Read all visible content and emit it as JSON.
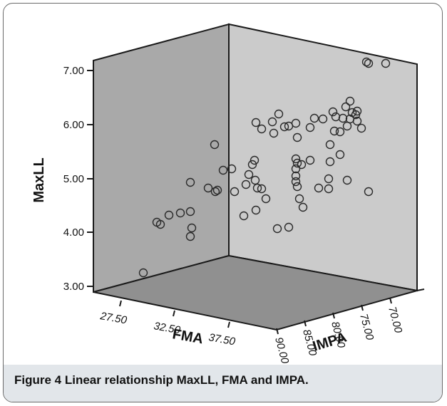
{
  "figure": {
    "caption_label": "Figure 4",
    "caption_text": "Linear relationship MaxLL, FMA and IMPA."
  },
  "chart_data": {
    "type": "scatter",
    "projection": "3d",
    "title": "",
    "zlabel": "MaxLL",
    "xlabel": "FMA",
    "ylabel": "IMPA",
    "z_ticks": [
      "3.00",
      "4.00",
      "5.00",
      "6.00",
      "7.00"
    ],
    "x_ticks": [
      "27.50",
      "32.50",
      "37.50"
    ],
    "y_ticks": [
      "90.00",
      "85.00",
      "80.00",
      "75.00",
      "70.00"
    ],
    "points_projected": [
      [
        200,
        382
      ],
      [
        219,
        311
      ],
      [
        236,
        301
      ],
      [
        252,
        298
      ],
      [
        266,
        296
      ],
      [
        224,
        314
      ],
      [
        266,
        255
      ],
      [
        268,
        319
      ],
      [
        266,
        331
      ],
      [
        300,
        202
      ],
      [
        291,
        263
      ],
      [
        301,
        268
      ],
      [
        304,
        266
      ],
      [
        312,
        238
      ],
      [
        324,
        236
      ],
      [
        341,
        302
      ],
      [
        353,
        230
      ],
      [
        328,
        268
      ],
      [
        344,
        258
      ],
      [
        348,
        244
      ],
      [
        357,
        252
      ],
      [
        356,
        224
      ],
      [
        358,
        294
      ],
      [
        360,
        263
      ],
      [
        366,
        264
      ],
      [
        372,
        278
      ],
      [
        388,
        320
      ],
      [
        404,
        318
      ],
      [
        358,
        171
      ],
      [
        366,
        180
      ],
      [
        381,
        170
      ],
      [
        390,
        159
      ],
      [
        383,
        186
      ],
      [
        398,
        177
      ],
      [
        404,
        176
      ],
      [
        414,
        172
      ],
      [
        416,
        192
      ],
      [
        414,
        222
      ],
      [
        416,
        228
      ],
      [
        414,
        236
      ],
      [
        414,
        254
      ],
      [
        416,
        261
      ],
      [
        419,
        278
      ],
      [
        424,
        290
      ],
      [
        434,
        224
      ],
      [
        414,
        246
      ],
      [
        422,
        230
      ],
      [
        434,
        178
      ],
      [
        440,
        165
      ],
      [
        452,
        166
      ],
      [
        462,
        202
      ],
      [
        466,
        156
      ],
      [
        468,
        183
      ],
      [
        470,
        163
      ],
      [
        476,
        184
      ],
      [
        480,
        165
      ],
      [
        486,
        176
      ],
      [
        490,
        166
      ],
      [
        486,
        252
      ],
      [
        460,
        250
      ],
      [
        446,
        263
      ],
      [
        462,
        226
      ],
      [
        476,
        216
      ],
      [
        484,
        149
      ],
      [
        493,
        157
      ],
      [
        498,
        160
      ],
      [
        506,
        179
      ],
      [
        516,
        88
      ],
      [
        540,
        88
      ],
      [
        513,
        86
      ],
      [
        516,
        268
      ],
      [
        490,
        141
      ],
      [
        500,
        169
      ],
      [
        500,
        155
      ],
      [
        460,
        264
      ]
    ]
  }
}
